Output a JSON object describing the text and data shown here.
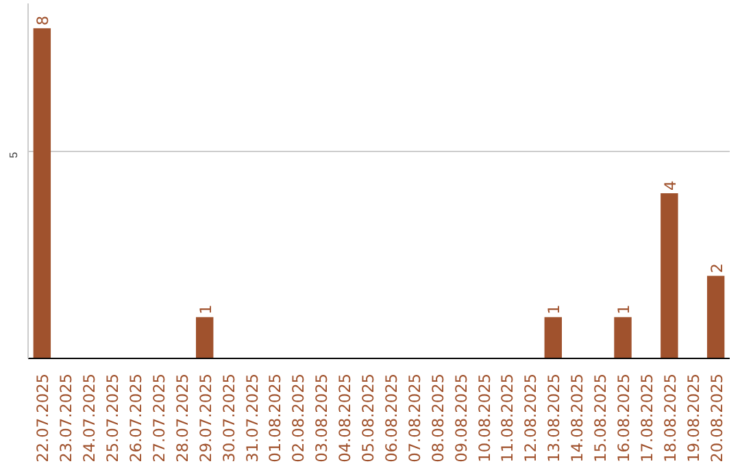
{
  "chart_data": {
    "type": "bar",
    "categories": [
      "22.07.2025",
      "23.07.2025",
      "24.07.2025",
      "25.07.2025",
      "26.07.2025",
      "27.07.2025",
      "28.07.2025",
      "29.07.2025",
      "30.07.2025",
      "31.07.2025",
      "01.08.2025",
      "02.08.2025",
      "03.08.2025",
      "04.08.2025",
      "05.08.2025",
      "06.08.2025",
      "07.08.2025",
      "08.08.2025",
      "09.08.2025",
      "10.08.2025",
      "11.08.2025",
      "12.08.2025",
      "13.08.2025",
      "14.08.2025",
      "15.08.2025",
      "16.08.2025",
      "17.08.2025",
      "18.08.2025",
      "19.08.2025",
      "20.08.2025"
    ],
    "values": [
      8,
      0,
      0,
      0,
      0,
      0,
      0,
      1,
      0,
      0,
      0,
      0,
      0,
      0,
      0,
      0,
      0,
      0,
      0,
      0,
      0,
      0,
      1,
      0,
      0,
      1,
      0,
      4,
      0,
      2
    ],
    "value_labels": [
      "8",
      null,
      null,
      null,
      null,
      null,
      null,
      "1",
      null,
      null,
      null,
      null,
      null,
      null,
      null,
      null,
      null,
      null,
      null,
      null,
      null,
      null,
      "1",
      null,
      null,
      "1",
      null,
      "4",
      null,
      "2"
    ],
    "color": "#a0522d",
    "ylim": [
      0,
      8.6
    ],
    "yticks": [
      5
    ],
    "grid": "y"
  }
}
